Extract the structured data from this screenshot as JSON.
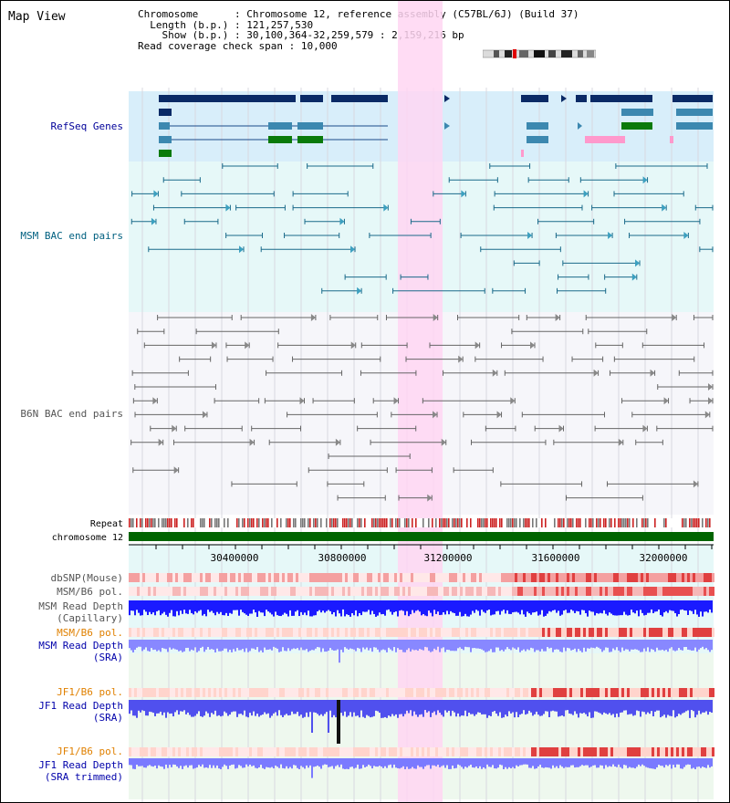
{
  "title": "Map View",
  "info": {
    "chromosome_label": "Chromosome",
    "chromosome_value": "Chromosome 12, reference assembly (C57BL/6J) (Build 37)",
    "length_label": "Length (b.p.)",
    "length_value": "121,257,530",
    "show_label": "Show (b.p.)",
    "show_value": "30,100,364-32,259,579 : 2,159,216 bp",
    "span_label": "Read coverage check span",
    "span_value": "10,000"
  },
  "tracks": {
    "refseq": "RefSeq Genes",
    "msm_bac": "MSM BAC end pairs",
    "b6n_bac": "B6N BAC end pairs",
    "repeat": "Repeat",
    "chromosome": "chromosome 12",
    "dbsnp": "dbSNP(Mouse)",
    "msm_b6_pol_1": "MSM/B6 pol.",
    "msm_depth_cap_1": "MSM Read Depth",
    "msm_depth_cap_2": "(Capillary)",
    "msm_b6_pol_2": "MSM/B6 pol.",
    "msm_depth_sra_1": "MSM Read Depth",
    "msm_depth_sra_2": "(SRA)",
    "jf1_b6_pol_1": "JF1/B6 pol.",
    "jf1_depth_sra_1": "JF1 Read Depth",
    "jf1_depth_sra_2": "(SRA)",
    "jf1_b6_pol_2": "JF1/B6 pol.",
    "jf1_depth_trim_1": "JF1 Read Depth",
    "jf1_depth_trim_2": "(SRA trimmed)"
  },
  "axis": {
    "ticks": [
      "30400000",
      "30800000",
      "31200000",
      "31600000",
      "32000000"
    ]
  },
  "colors": {
    "refseq_label": "#000099",
    "msm_bac_label": "#006080",
    "b6n_label": "#555555",
    "pol_label": "#e08000",
    "depth_label": "#0000aa",
    "highlight": "#ffd6f2",
    "chromosome_bar": "#006400"
  }
}
